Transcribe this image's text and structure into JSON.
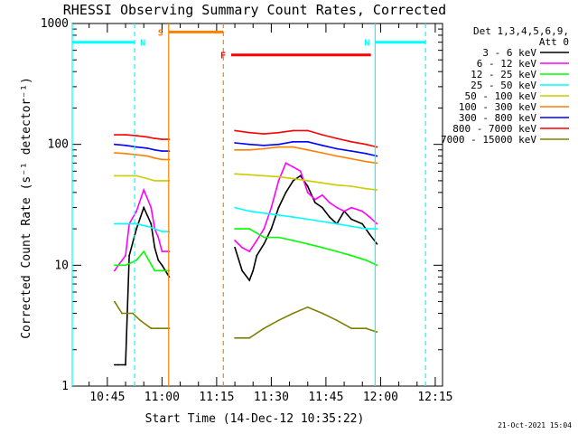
{
  "chart_data": {
    "type": "line",
    "title": "RHESSI Observing Summary Count Rates, Corrected",
    "xlabel": "Start Time (14-Dec-12 10:35:22)",
    "ylabel": "Corrected Count Rate (s⁻¹ detector⁻¹)",
    "y_scale": "log",
    "ylim": [
      1,
      1000
    ],
    "xlim": [
      "10:35:22",
      "12:17:00"
    ],
    "x_ticks": [
      "10:45",
      "11:00",
      "11:15",
      "11:30",
      "11:45",
      "12:00",
      "12:15"
    ],
    "y_ticks": [
      "1",
      "10",
      "100",
      "1000"
    ],
    "legend": {
      "header": [
        "Det 1,3,4,5,6,9,",
        "Att 0"
      ],
      "position": "right"
    },
    "stamp": "21-Oct-2021 15:04",
    "series": [
      {
        "name": "3 - 6 keV",
        "color": "#000000",
        "x": [
          "10:47",
          "10:48",
          "10:50",
          "10:51",
          "10:53",
          "10:55",
          "10:57",
          "10:58",
          "10:59",
          "11:00",
          "11:02",
          "11:20",
          "11:22",
          "11:24",
          "11:25",
          "11:26",
          "11:28",
          "11:30",
          "11:32",
          "11:34",
          "11:36",
          "11:38",
          "11:40",
          "11:42",
          "11:44",
          "11:46",
          "11:48",
          "11:50",
          "11:52",
          "11:55",
          "11:57",
          "11:59"
        ],
        "y": [
          1.5,
          1.5,
          1.5,
          12,
          20,
          30,
          22,
          14,
          11,
          10,
          8,
          14,
          9,
          7.5,
          9,
          12,
          15,
          20,
          30,
          40,
          50,
          55,
          45,
          33,
          30,
          25,
          22,
          28,
          24,
          22,
          18,
          15
        ]
      },
      {
        "name": "6 - 12 keV",
        "color": "#ff00ff",
        "x": [
          "10:47",
          "10:48",
          "10:50",
          "10:51",
          "10:53",
          "10:55",
          "10:57",
          "10:58",
          "10:59",
          "11:00",
          "11:02",
          "11:20",
          "11:22",
          "11:24",
          "11:26",
          "11:28",
          "11:30",
          "11:32",
          "11:34",
          "11:36",
          "11:38",
          "11:40",
          "11:42",
          "11:44",
          "11:46",
          "11:48",
          "11:50",
          "11:52",
          "11:55",
          "11:57",
          "11:59"
        ],
        "y": [
          9,
          10,
          12,
          22,
          28,
          42,
          30,
          20,
          17,
          13,
          13,
          16,
          14,
          13,
          16,
          20,
          30,
          50,
          70,
          65,
          60,
          40,
          35,
          38,
          33,
          30,
          28,
          30,
          28,
          25,
          22
        ]
      },
      {
        "name": "12 - 25 keV",
        "color": "#00ff00",
        "x": [
          "10:47",
          "10:50",
          "10:53",
          "10:55",
          "10:58",
          "11:00",
          "11:02",
          "11:20",
          "11:24",
          "11:28",
          "11:32",
          "11:36",
          "11:40",
          "11:44",
          "11:48",
          "11:52",
          "11:56",
          "11:59"
        ],
        "y": [
          10,
          10,
          11,
          13,
          9,
          9,
          9,
          20,
          20,
          17,
          17,
          16,
          15,
          14,
          13,
          12,
          11,
          10
        ]
      },
      {
        "name": "25 - 50 keV",
        "color": "#00ffff",
        "x": [
          "10:47",
          "10:50",
          "10:53",
          "10:56",
          "10:58",
          "11:00",
          "11:02",
          "11:20",
          "11:24",
          "11:28",
          "11:32",
          "11:36",
          "11:40",
          "11:44",
          "11:48",
          "11:52",
          "11:56",
          "11:59"
        ],
        "y": [
          22,
          22,
          22,
          21,
          20,
          19,
          19,
          30,
          28,
          27,
          26,
          25,
          24,
          23,
          22,
          21,
          20,
          20
        ]
      },
      {
        "name": "50 - 100 keV",
        "color": "#cccc00",
        "x": [
          "10:47",
          "10:50",
          "10:53",
          "10:56",
          "10:58",
          "11:00",
          "11:02",
          "11:20",
          "11:24",
          "11:28",
          "11:32",
          "11:36",
          "11:40",
          "11:44",
          "11:48",
          "11:52",
          "11:56",
          "11:59"
        ],
        "y": [
          55,
          55,
          55,
          52,
          50,
          50,
          50,
          57,
          56,
          55,
          54,
          52,
          50,
          48,
          46,
          45,
          43,
          42
        ]
      },
      {
        "name": "100 - 300 keV",
        "color": "#ff7f00",
        "x": [
          "10:47",
          "10:50",
          "10:53",
          "10:56",
          "10:58",
          "11:00",
          "11:02",
          "11:20",
          "11:24",
          "11:28",
          "11:32",
          "11:36",
          "11:40",
          "11:44",
          "11:48",
          "11:52",
          "11:56",
          "11:59"
        ],
        "y": [
          85,
          84,
          82,
          80,
          77,
          75,
          75,
          90,
          90,
          92,
          95,
          95,
          90,
          85,
          80,
          76,
          72,
          70
        ]
      },
      {
        "name": "300 - 800 keV",
        "color": "#0000ff",
        "x": [
          "10:47",
          "10:50",
          "10:53",
          "10:56",
          "10:58",
          "11:00",
          "11:02",
          "11:20",
          "11:24",
          "11:28",
          "11:32",
          "11:36",
          "11:40",
          "11:44",
          "11:48",
          "11:52",
          "11:56",
          "11:59"
        ],
        "y": [
          100,
          98,
          95,
          93,
          90,
          88,
          88,
          103,
          100,
          98,
          100,
          105,
          105,
          98,
          92,
          88,
          84,
          80
        ]
      },
      {
        "name": "800 - 7000 keV",
        "color": "#ff0000",
        "x": [
          "10:47",
          "10:50",
          "10:53",
          "10:56",
          "10:58",
          "11:00",
          "11:02",
          "11:20",
          "11:24",
          "11:28",
          "11:32",
          "11:36",
          "11:40",
          "11:44",
          "11:48",
          "11:52",
          "11:56",
          "11:59"
        ],
        "y": [
          120,
          120,
          118,
          115,
          112,
          110,
          110,
          130,
          125,
          122,
          125,
          130,
          130,
          120,
          112,
          105,
          100,
          95
        ]
      },
      {
        "name": "7000 - 15000 keV",
        "color": "#808000",
        "x": [
          "10:47",
          "10:49",
          "10:52",
          "10:54",
          "10:57",
          "10:59",
          "11:02",
          "11:20",
          "11:24",
          "11:28",
          "11:32",
          "11:36",
          "11:40",
          "11:44",
          "11:48",
          "11:52",
          "11:56",
          "11:59"
        ],
        "y": [
          5,
          4,
          4,
          3.5,
          3,
          3,
          3,
          2.5,
          2.5,
          3,
          3.5,
          4,
          4.5,
          4,
          3.5,
          3,
          3,
          2.8
        ]
      }
    ],
    "annotations": [
      {
        "label": "N",
        "color": "#00ffff",
        "x_start": "10:35:22",
        "x_end": "10:52:30",
        "y": 700,
        "vlines": [
          {
            "x": "10:35:22",
            "style": "solid"
          },
          {
            "x": "10:52:30",
            "style": "dashed"
          }
        ]
      },
      {
        "label": "N",
        "color": "#00ffff",
        "x_start": "11:58:30",
        "x_end": "12:12:20",
        "y": 700,
        "vlines": [
          {
            "x": "11:58:30",
            "style": "solid"
          },
          {
            "x": "12:12:20",
            "style": "dashed"
          }
        ]
      },
      {
        "label": "S",
        "color": "#ff7f00",
        "x_start": "11:01:50",
        "x_end": "11:16:50",
        "y": 850,
        "vlines": [
          {
            "x": "11:01:50",
            "style": "solid"
          },
          {
            "x": "11:16:50",
            "style": "dashed"
          }
        ]
      },
      {
        "label": "F",
        "color": "#ff0000",
        "x_start": "11:19:00",
        "x_end": "11:57:20",
        "y": 550,
        "vlines": []
      }
    ],
    "gaps": [
      {
        "from": "10:35:22",
        "to": "10:46:30"
      },
      {
        "from": "11:02:30",
        "to": "11:19:30"
      },
      {
        "from": "11:59:00",
        "to": "12:00:20"
      }
    ]
  }
}
